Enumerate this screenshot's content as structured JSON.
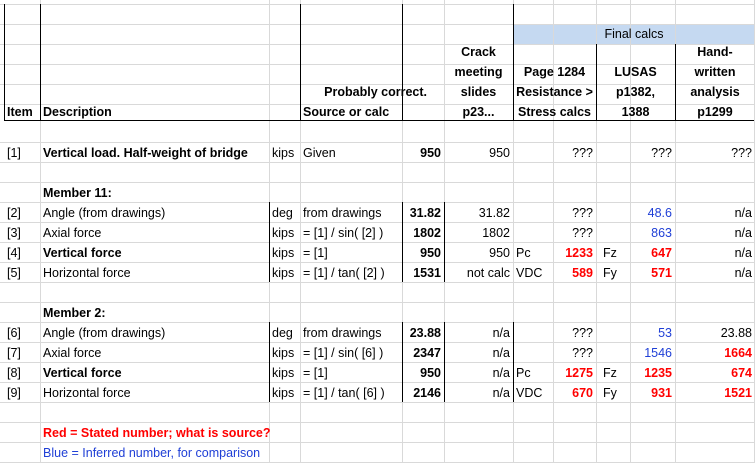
{
  "header": {
    "item": "Item",
    "description": "Description",
    "probably_correct": "Probably correct.",
    "source_or_calc": "Source or calc",
    "final_calcs": "Final calcs",
    "crack": [
      "Crack",
      "meeting",
      "slides",
      "p23..."
    ],
    "page1284": [
      "Page 1284",
      "Resistance >",
      "Stress calcs"
    ],
    "lusas": [
      "LUSAS",
      "p1382,",
      "1388"
    ],
    "hand": [
      "Hand-",
      "written",
      "analysis",
      "p1299"
    ]
  },
  "rows": {
    "r1": {
      "item": "[1]",
      "desc": "Vertical load. Half-weight of bridge",
      "unit": "kips",
      "src": "Given",
      "val": "950",
      "crack": "950",
      "p1284": "???",
      "lusas": "???",
      "hand": "???"
    },
    "m11": "Member 11:",
    "r2": {
      "item": "[2]",
      "desc": "Angle (from drawings)",
      "unit": "deg",
      "src": "from drawings",
      "val": "31.82",
      "crack": "31.82",
      "p1284": "???",
      "lusas": "48.6",
      "hand": "n/a"
    },
    "r3": {
      "item": "[3]",
      "desc": "Axial force",
      "unit": "kips",
      "src": "= [1] / sin( [2] )",
      "val": "1802",
      "crack": "1802",
      "p1284": "???",
      "lusas": "863",
      "hand": "n/a"
    },
    "r4": {
      "item": "[4]",
      "desc": "Vertical force",
      "unit": "kips",
      "src": "= [1]",
      "val": "950",
      "crack": "950",
      "p_lbl": "Pc",
      "p1284": "1233",
      "l_lbl": "Fz",
      "lusas": "647",
      "hand": "n/a"
    },
    "r5": {
      "item": "[5]",
      "desc": "Horizontal force",
      "unit": "kips",
      "src": "= [1] / tan( [2] )",
      "val": "1531",
      "crack": "not calc",
      "p_lbl": "VDC",
      "p1284": "589",
      "l_lbl": "Fy",
      "lusas": "571",
      "hand": "n/a"
    },
    "m2": "Member 2:",
    "r6": {
      "item": "[6]",
      "desc": "Angle (from drawings)",
      "unit": "deg",
      "src": "from drawings",
      "val": "23.88",
      "crack": "n/a",
      "p1284": "???",
      "lusas": "53",
      "hand": "23.88"
    },
    "r7": {
      "item": "[7]",
      "desc": "Axial force",
      "unit": "kips",
      "src": "= [1] / sin( [6] )",
      "val": "2347",
      "crack": "n/a",
      "p1284": "???",
      "lusas": "1546",
      "hand": "1664"
    },
    "r8": {
      "item": "[8]",
      "desc": "Vertical force",
      "unit": "kips",
      "src": "= [1]",
      "val": "950",
      "crack": "n/a",
      "p_lbl": "Pc",
      "p1284": "1275",
      "l_lbl": "Fz",
      "lusas": "1235",
      "hand": "674"
    },
    "r9": {
      "item": "[9]",
      "desc": "Horizontal force",
      "unit": "kips",
      "src": "= [1] / tan( [6] )",
      "val": "2146",
      "crack": "n/a",
      "p_lbl": "VDC",
      "p1284": "670",
      "l_lbl": "Fy",
      "lusas": "931",
      "hand": "1521"
    }
  },
  "legend": {
    "red": "Red = Stated number; what is source?",
    "blue": "Blue = Inferred number, for comparison"
  },
  "colors": {
    "red": "#ff0000",
    "blue": "#1f3fd6",
    "final_calcs_fill": "#c5d9f1",
    "gridline": "#d9d9d9"
  }
}
